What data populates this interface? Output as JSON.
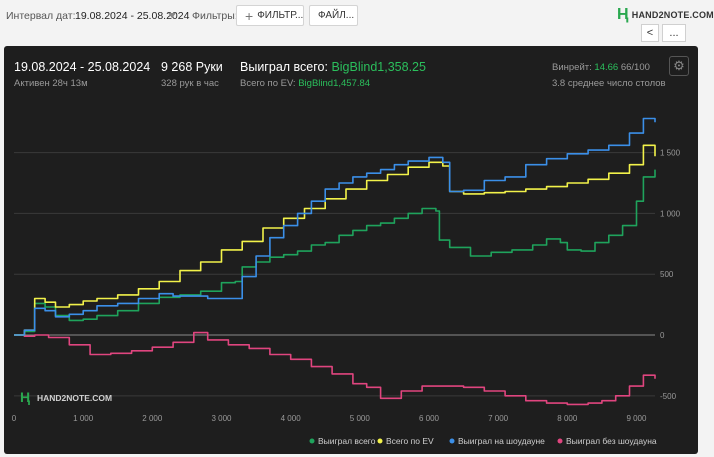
{
  "toolbar": {
    "date_label": "Интервал дат:",
    "date_value": "19.08.2024 - 25.08.2024",
    "filters_label": "Фильтры:",
    "filter_button": "ФИЛЬТР...",
    "file_button": "ФАЙЛ...",
    "logo_text": "HAND2NOTE.COM",
    "nav_prev": "<",
    "nav_more": "..."
  },
  "stats": {
    "date_range": "19.08.2024 - 25.08.2024",
    "active": "Активен 28ч 13м",
    "hands": "9 268 Руки",
    "hands_per_hour": "328 рук в час",
    "won_label": "Выиграл всего:",
    "won_value": "BigBlind1,358.25",
    "ev_label": "Всего по EV:",
    "ev_value": "BigBlind1,457.84",
    "winrate_label": "Винрейт:",
    "winrate_value": "14.66",
    "winrate_sample": "66/100",
    "tables": "3.8 среднее число столов"
  },
  "watermark": "HAND2NOTE.COM",
  "colors": {
    "won": "#1fa35c",
    "ev": "#f2f24a",
    "showdown": "#3b8fe8",
    "nonshowdown": "#e0457f",
    "grid": "#3a3a3a",
    "zero": "#8a8a8a"
  },
  "chart_data": {
    "type": "line",
    "x_ticks": [
      "0",
      "1 000",
      "2 000",
      "3 000",
      "4 000",
      "5 000",
      "6 000",
      "7 000",
      "8 000",
      "9 000"
    ],
    "y_ticks": [
      "-500",
      "0",
      "500",
      "1 000",
      "1 500"
    ],
    "xlim": [
      0,
      9268
    ],
    "ylim": [
      -600,
      1850
    ],
    "legend_position": "bottom-right",
    "grid": true,
    "series": [
      {
        "name": "Выиграл всего",
        "color": "#1fa35c",
        "points": [
          [
            0,
            0
          ],
          [
            150,
            30
          ],
          [
            300,
            260
          ],
          [
            450,
            230
          ],
          [
            600,
            160
          ],
          [
            800,
            120
          ],
          [
            1000,
            130
          ],
          [
            1200,
            160
          ],
          [
            1500,
            200
          ],
          [
            1800,
            260
          ],
          [
            2100,
            310
          ],
          [
            2400,
            330
          ],
          [
            2700,
            360
          ],
          [
            3000,
            430
          ],
          [
            3200,
            440
          ],
          [
            3300,
            560
          ],
          [
            3500,
            600
          ],
          [
            3700,
            640
          ],
          [
            3900,
            660
          ],
          [
            4100,
            690
          ],
          [
            4300,
            740
          ],
          [
            4500,
            760
          ],
          [
            4700,
            820
          ],
          [
            4900,
            860
          ],
          [
            5100,
            900
          ],
          [
            5300,
            920
          ],
          [
            5500,
            960
          ],
          [
            5700,
            1000
          ],
          [
            5900,
            1040
          ],
          [
            6100,
            1020
          ],
          [
            6150,
            780
          ],
          [
            6300,
            720
          ],
          [
            6600,
            650
          ],
          [
            6900,
            680
          ],
          [
            7200,
            700
          ],
          [
            7500,
            740
          ],
          [
            7700,
            790
          ],
          [
            7900,
            760
          ],
          [
            8000,
            700
          ],
          [
            8200,
            690
          ],
          [
            8400,
            760
          ],
          [
            8600,
            820
          ],
          [
            8800,
            900
          ],
          [
            9000,
            1100
          ],
          [
            9100,
            1300
          ],
          [
            9268,
            1360
          ]
        ]
      },
      {
        "name": "Всего по EV",
        "color": "#f2f24a",
        "points": [
          [
            0,
            0
          ],
          [
            150,
            40
          ],
          [
            300,
            300
          ],
          [
            450,
            270
          ],
          [
            600,
            230
          ],
          [
            800,
            250
          ],
          [
            1000,
            280
          ],
          [
            1200,
            300
          ],
          [
            1500,
            330
          ],
          [
            1800,
            380
          ],
          [
            2100,
            440
          ],
          [
            2400,
            530
          ],
          [
            2700,
            600
          ],
          [
            3000,
            700
          ],
          [
            3300,
            770
          ],
          [
            3600,
            880
          ],
          [
            3900,
            960
          ],
          [
            4200,
            1040
          ],
          [
            4500,
            1120
          ],
          [
            4800,
            1200
          ],
          [
            5100,
            1270
          ],
          [
            5400,
            1320
          ],
          [
            5700,
            1380
          ],
          [
            6000,
            1420
          ],
          [
            6200,
            1390
          ],
          [
            6300,
            1180
          ],
          [
            6500,
            1160
          ],
          [
            6800,
            1170
          ],
          [
            7100,
            1180
          ],
          [
            7400,
            1200
          ],
          [
            7700,
            1220
          ],
          [
            8000,
            1250
          ],
          [
            8300,
            1280
          ],
          [
            8600,
            1330
          ],
          [
            8900,
            1400
          ],
          [
            9100,
            1560
          ],
          [
            9268,
            1470
          ]
        ]
      },
      {
        "name": "Выиграл на шоудауне",
        "color": "#3b8fe8",
        "points": [
          [
            0,
            0
          ],
          [
            150,
            40
          ],
          [
            300,
            220
          ],
          [
            450,
            200
          ],
          [
            600,
            150
          ],
          [
            800,
            170
          ],
          [
            1000,
            200
          ],
          [
            1200,
            240
          ],
          [
            1500,
            260
          ],
          [
            1800,
            300
          ],
          [
            2100,
            340
          ],
          [
            2300,
            320
          ],
          [
            2500,
            320
          ],
          [
            2800,
            300
          ],
          [
            3100,
            300
          ],
          [
            3300,
            480
          ],
          [
            3500,
            650
          ],
          [
            3700,
            800
          ],
          [
            3900,
            900
          ],
          [
            4100,
            1000
          ],
          [
            4300,
            1100
          ],
          [
            4500,
            1200
          ],
          [
            4700,
            1250
          ],
          [
            4900,
            1300
          ],
          [
            5100,
            1330
          ],
          [
            5300,
            1360
          ],
          [
            5500,
            1400
          ],
          [
            5700,
            1430
          ],
          [
            6000,
            1460
          ],
          [
            6200,
            1420
          ],
          [
            6300,
            1180
          ],
          [
            6500,
            1190
          ],
          [
            6800,
            1270
          ],
          [
            7100,
            1300
          ],
          [
            7400,
            1400
          ],
          [
            7700,
            1450
          ],
          [
            8000,
            1490
          ],
          [
            8300,
            1520
          ],
          [
            8600,
            1560
          ],
          [
            8900,
            1660
          ],
          [
            9100,
            1780
          ],
          [
            9268,
            1750
          ]
        ]
      },
      {
        "name": "Выиграл без шоудауна",
        "color": "#e0457f",
        "points": [
          [
            0,
            0
          ],
          [
            150,
            -10
          ],
          [
            300,
            0
          ],
          [
            500,
            -20
          ],
          [
            800,
            -80
          ],
          [
            1100,
            -160
          ],
          [
            1400,
            -150
          ],
          [
            1700,
            -130
          ],
          [
            2000,
            -100
          ],
          [
            2300,
            -60
          ],
          [
            2600,
            20
          ],
          [
            2800,
            -40
          ],
          [
            3100,
            -80
          ],
          [
            3400,
            -110
          ],
          [
            3700,
            -160
          ],
          [
            4000,
            -200
          ],
          [
            4300,
            -260
          ],
          [
            4600,
            -320
          ],
          [
            4900,
            -400
          ],
          [
            5100,
            -430
          ],
          [
            5300,
            -520
          ],
          [
            5600,
            -460
          ],
          [
            5900,
            -420
          ],
          [
            6200,
            -420
          ],
          [
            6500,
            -430
          ],
          [
            6800,
            -460
          ],
          [
            7100,
            -500
          ],
          [
            7400,
            -540
          ],
          [
            7700,
            -560
          ],
          [
            8000,
            -570
          ],
          [
            8300,
            -560
          ],
          [
            8500,
            -540
          ],
          [
            8700,
            -500
          ],
          [
            8900,
            -420
          ],
          [
            9100,
            -330
          ],
          [
            9268,
            -360
          ]
        ]
      }
    ]
  }
}
